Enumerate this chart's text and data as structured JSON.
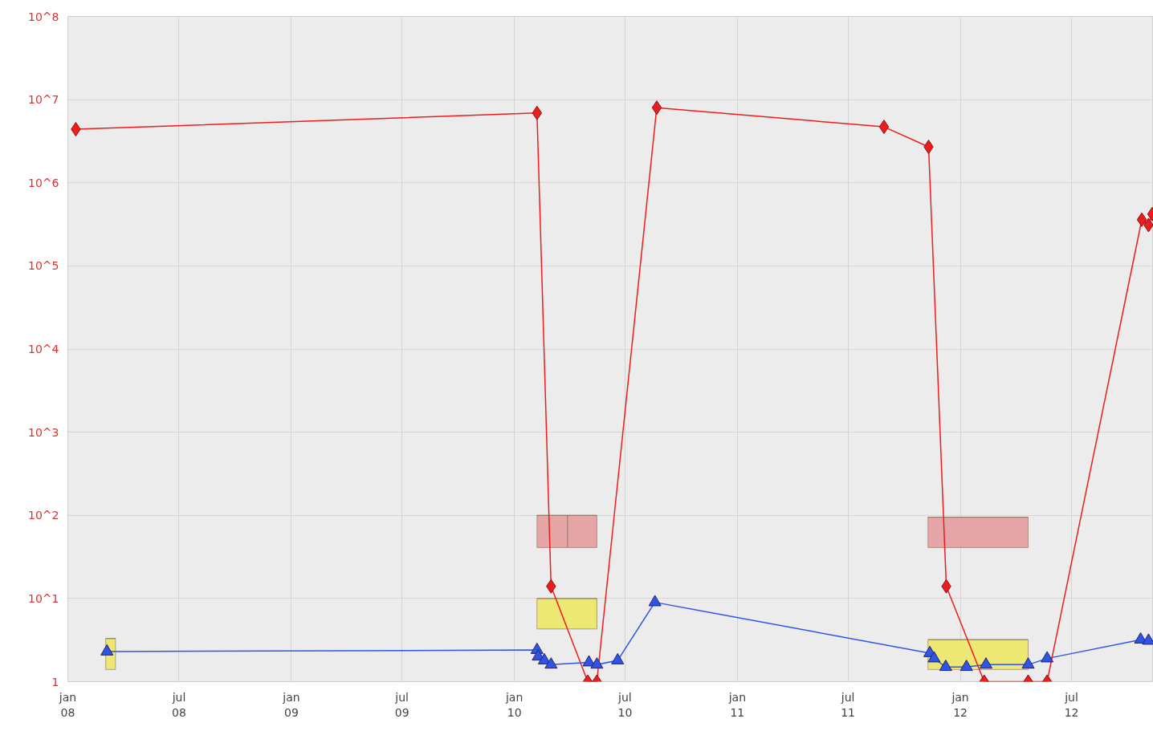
{
  "chart_data": {
    "type": "line",
    "log": "y",
    "grid": true,
    "xlim": [
      "2008-01-01",
      "2012-11-12"
    ],
    "xticks": [
      {
        "value": "2008-01-01",
        "label": "jan\n08"
      },
      {
        "value": "2008-07-01",
        "label": "jul\n08"
      },
      {
        "value": "2009-01-01",
        "label": "jan\n09"
      },
      {
        "value": "2009-07-01",
        "label": "jul\n09"
      },
      {
        "value": "2010-01-01",
        "label": "jan\n10"
      },
      {
        "value": "2010-07-01",
        "label": "jul\n10"
      },
      {
        "value": "2011-01-01",
        "label": "jan\n11"
      },
      {
        "value": "2011-07-01",
        "label": "jul\n11"
      },
      {
        "value": "2012-01-01",
        "label": "jan\n12"
      },
      {
        "value": "2012-07-01",
        "label": "jul\n12"
      }
    ],
    "ylim": [
      1,
      100000000
    ],
    "yticks": [
      1,
      {
        "value": 10,
        "label": "10^1"
      },
      {
        "value": 100,
        "label": "10^2"
      },
      {
        "value": 1000,
        "label": "10^3"
      },
      {
        "value": 10000,
        "label": "10^4"
      },
      {
        "value": 100000,
        "label": "10^5"
      },
      {
        "value": 1000000,
        "label": "10^6"
      },
      {
        "value": 10000000,
        "label": "10^7"
      },
      {
        "value": 100000000,
        "label": "10^8"
      }
    ],
    "series": [
      {
        "type": "bar",
        "color": "#e59a9c",
        "x": [
          "2010-03-04",
          "2010-04-22",
          "2012-01-30"
        ],
        "xerrors": [
          25,
          24,
          82
        ],
        "base": [
          41,
          41,
          41
        ],
        "values": [
          59,
          59,
          54
        ]
      },
      {
        "type": "bar",
        "color": "#ece85e",
        "x": [
          "2008-03-11",
          "2010-03-28",
          "2012-01-30"
        ],
        "xerrors": [
          8,
          49,
          82
        ],
        "base": [
          1.4,
          4.3,
          1.4
        ],
        "values": [
          1.9,
          5.7,
          1.8
        ]
      },
      {
        "color": "#ee1c1c",
        "marker": "diamond",
        "x": [
          "2008-01-14",
          "2010-02-07",
          "2010-03-02",
          "2010-05-01",
          "2010-05-16",
          "2010-08-22",
          "2011-08-29",
          "2011-11-10",
          "2011-12-09",
          "2012-02-09",
          "2012-04-21",
          "2012-05-22",
          "2012-10-24",
          "2012-11-04",
          "2012-11-10"
        ],
        "values": [
          4400000,
          6900000,
          14,
          1,
          1,
          8000000,
          4700000,
          2700000,
          14,
          1,
          1,
          1,
          360000,
          310000,
          420000
        ]
      },
      {
        "color": "#2f55e8",
        "marker": "triangle",
        "x": [
          "2008-03-05",
          "2010-02-07",
          "2010-02-09",
          "2010-02-19",
          "2010-03-02",
          "2010-05-03",
          "2010-05-16",
          "2010-06-19",
          "2010-08-19",
          "2011-11-12",
          "2011-11-19",
          "2011-12-08",
          "2012-01-11",
          "2012-02-12",
          "2012-04-21",
          "2012-05-22",
          "2012-10-22",
          "2012-11-04"
        ],
        "values": [
          2.3,
          2.4,
          2.0,
          1.8,
          1.6,
          1.7,
          1.6,
          1.8,
          9.0,
          2.2,
          1.9,
          1.5,
          1.5,
          1.6,
          1.6,
          1.9,
          3.2,
          3.1
        ]
      }
    ]
  }
}
